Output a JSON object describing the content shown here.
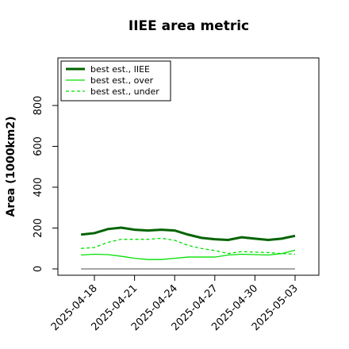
{
  "chart_data": {
    "type": "line",
    "title": "IIEE area metric",
    "ylabel": "Area (1000km2)",
    "x": [
      "2025-04-17",
      "2025-04-18",
      "2025-04-19",
      "2025-04-20",
      "2025-04-21",
      "2025-04-22",
      "2025-04-23",
      "2025-04-24",
      "2025-04-25",
      "2025-04-26",
      "2025-04-27",
      "2025-04-28",
      "2025-04-29",
      "2025-04-30",
      "2025-05-01",
      "2025-05-02",
      "2025-05-03"
    ],
    "series": [
      {
        "name": "best est., IIEE",
        "color": "#006400",
        "linewidth": 3,
        "linestyle": "solid",
        "values": [
          168,
          175,
          195,
          202,
          192,
          188,
          192,
          188,
          168,
          152,
          145,
          142,
          155,
          148,
          142,
          148,
          162
        ]
      },
      {
        "name": "best est., over",
        "color": "#00e000",
        "linewidth": 1.3,
        "linestyle": "solid",
        "values": [
          68,
          72,
          70,
          62,
          52,
          46,
          46,
          52,
          58,
          58,
          58,
          68,
          72,
          70,
          68,
          75,
          92
        ]
      },
      {
        "name": "best est., under",
        "color": "#00e000",
        "linewidth": 1.3,
        "linestyle": "dashed",
        "values": [
          100,
          105,
          130,
          145,
          145,
          145,
          150,
          140,
          115,
          100,
          90,
          75,
          85,
          82,
          80,
          75,
          72
        ]
      }
    ],
    "xlim": [
      "2025-04-15T06:30",
      "2025-05-04T18:40"
    ],
    "xticks": [
      "2025-04-18",
      "2025-04-21",
      "2025-04-24",
      "2025-04-27",
      "2025-04-30",
      "2025-05-03"
    ],
    "ylim": [
      -31,
      1033
    ],
    "yticks": [
      0,
      200,
      400,
      600,
      800
    ],
    "legend": "upper left"
  }
}
